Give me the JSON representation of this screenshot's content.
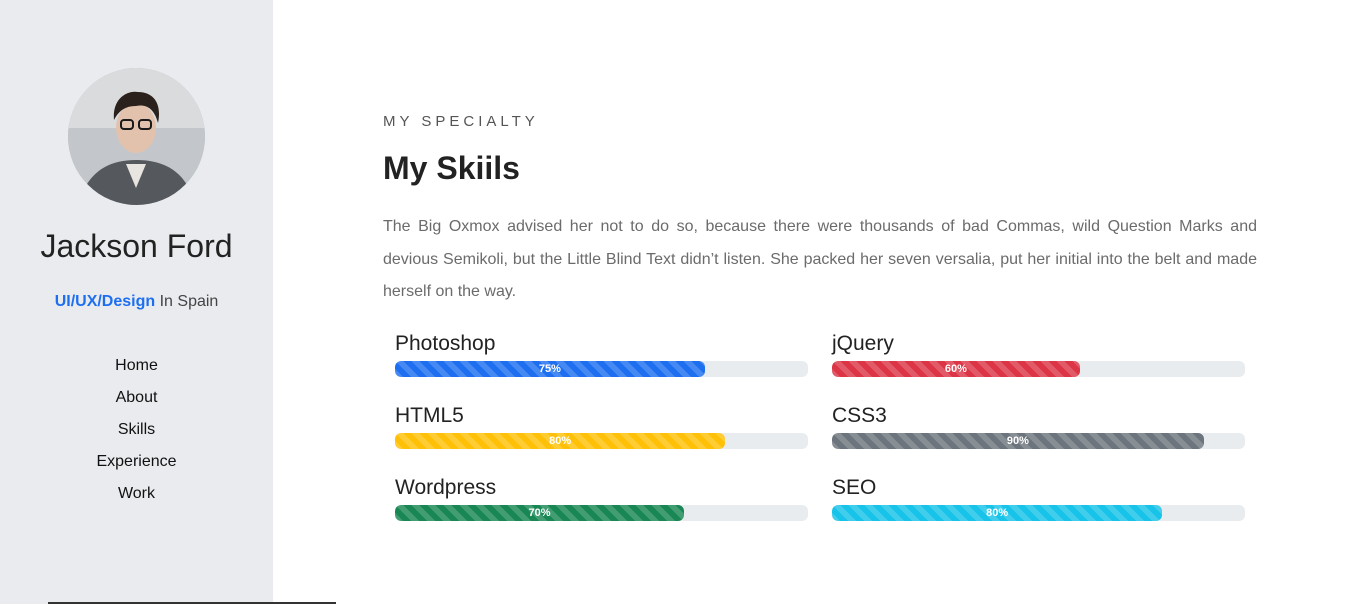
{
  "sidebar": {
    "name": "Jackson Ford",
    "role_highlight": "UI/UX/Design",
    "role_rest": " In Spain",
    "nav": [
      "Home",
      "About",
      "Skills",
      "Experience",
      "Work"
    ]
  },
  "main": {
    "eyebrow": "MY SPECIALTY",
    "title": "My Skiils",
    "description": "The Big Oxmox advised her not to do so, because there were thousands of bad Commas, wild Question Marks and devious Semikoli, but the Little Blind Text didn’t listen. She packed her seven versalia, put her initial into the belt and made herself on the way."
  },
  "skills": [
    {
      "name": "Photoshop",
      "label": "75%",
      "percent": 75,
      "color": "#1e6ff0"
    },
    {
      "name": "jQuery",
      "label": "60%",
      "percent": 60,
      "color": "#dc3545"
    },
    {
      "name": "HTML5",
      "label": "80%",
      "percent": 80,
      "color": "#ffc107"
    },
    {
      "name": "CSS3",
      "label": "90%",
      "percent": 90,
      "color": "#6c757d"
    },
    {
      "name": "Wordpress",
      "label": "70%",
      "percent": 70,
      "color": "#198754"
    },
    {
      "name": "SEO",
      "label": "80%",
      "percent": 80,
      "color": "#17c3e8"
    }
  ]
}
